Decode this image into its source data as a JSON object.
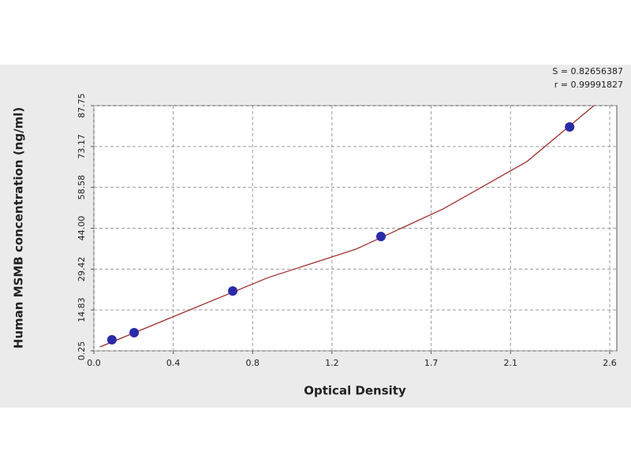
{
  "chart_data": {
    "type": "scatter",
    "x_label": "Optical Density",
    "y_label": "Human MSMB concentration (ng/ml)",
    "annotations": [
      "S = 0.82656387",
      "r = 0.99991827"
    ],
    "x": [
      0.091,
      0.203,
      0.7,
      1.447,
      2.398
    ],
    "values": [
      4.19,
      6.72,
      21.6,
      41.05,
      80.15
    ],
    "color": "#2a2aa8",
    "curve": {
      "x": [
        0.03,
        0.437,
        0.879,
        1.32,
        1.761,
        2.183,
        2.52
      ],
      "values": [
        1.6,
        13.5,
        26.4,
        36.5,
        50.9,
        67.8,
        87.75
      ],
      "color": "#a03030"
    },
    "xlim": [
      0,
      2.6
    ],
    "xticks": [
      {
        "value": 0,
        "label": "0.0"
      },
      0.4,
      0.8,
      1.2,
      1.7,
      2.1,
      2.6
    ],
    "ylim": [
      0.25,
      87.75
    ],
    "yticks": [
      0.25,
      14.83,
      29.42,
      {
        "value": 44,
        "label": "44.00"
      },
      58.58,
      73.17,
      87.75
    ],
    "grid": true
  }
}
